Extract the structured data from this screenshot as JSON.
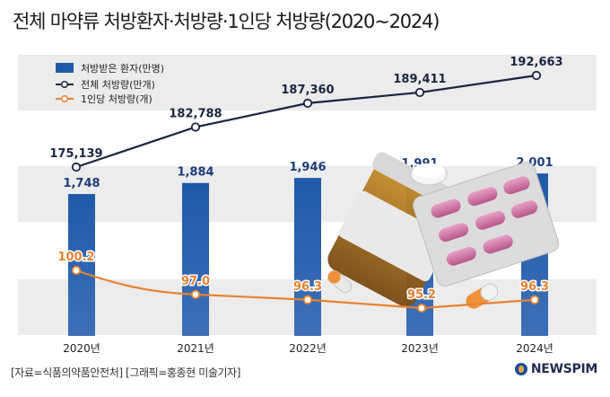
{
  "title": "전체 마약류 처방환자·처방량·1인당 처방량(2020~2024)",
  "footer": "[자료=식품의약품안전처] [그래픽=홍종현 미술기자]",
  "logo": "NEWSPIM",
  "colors": {
    "bar": "#1f5aa8",
    "line_total": "#1a2640",
    "line_per_person": "#e8822f",
    "band": "#ececec"
  },
  "chart_data": {
    "type": "bar",
    "categories": [
      "2020년",
      "2021년",
      "2022년",
      "2023년",
      "2024년"
    ],
    "series": [
      {
        "name": "처방받은 환자(만명)",
        "type": "bar",
        "values": [
          1748,
          1884,
          1946,
          1991,
          2001
        ],
        "labels": [
          "1,748",
          "1,884",
          "1,946",
          "1,991",
          "2,001"
        ]
      },
      {
        "name": "전체 처방량(만개)",
        "type": "line",
        "values": [
          175139,
          182788,
          187360,
          189411,
          192663
        ],
        "labels": [
          "175,139",
          "182,788",
          "187,360",
          "189,411",
          "192,663"
        ]
      },
      {
        "name": "1인당 처방량(개)",
        "type": "line",
        "values": [
          100.2,
          97.0,
          96.3,
          95.2,
          96.3
        ],
        "labels": [
          "100.2",
          "97.0",
          "96.3",
          "95.2",
          "96.3"
        ]
      }
    ],
    "legend": "top-left",
    "grid": false
  }
}
